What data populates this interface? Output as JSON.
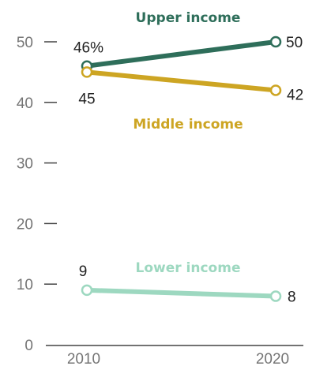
{
  "chart_data": {
    "type": "line",
    "x": [
      "2010",
      "2020"
    ],
    "ylim": [
      0,
      50
    ],
    "yticks": [
      0,
      10,
      20,
      30,
      40,
      50
    ],
    "grid": false,
    "series": [
      {
        "name": "Upper income",
        "values": [
          46,
          50
        ],
        "labels": [
          "46%",
          "50"
        ],
        "color": "#2e6e5a"
      },
      {
        "name": "Middle income",
        "values": [
          45,
          42
        ],
        "labels": [
          "45",
          "42"
        ],
        "color": "#cda523"
      },
      {
        "name": "Lower income",
        "values": [
          9,
          8
        ],
        "labels": [
          "9",
          "8"
        ],
        "color": "#9dd8c0"
      }
    ]
  }
}
